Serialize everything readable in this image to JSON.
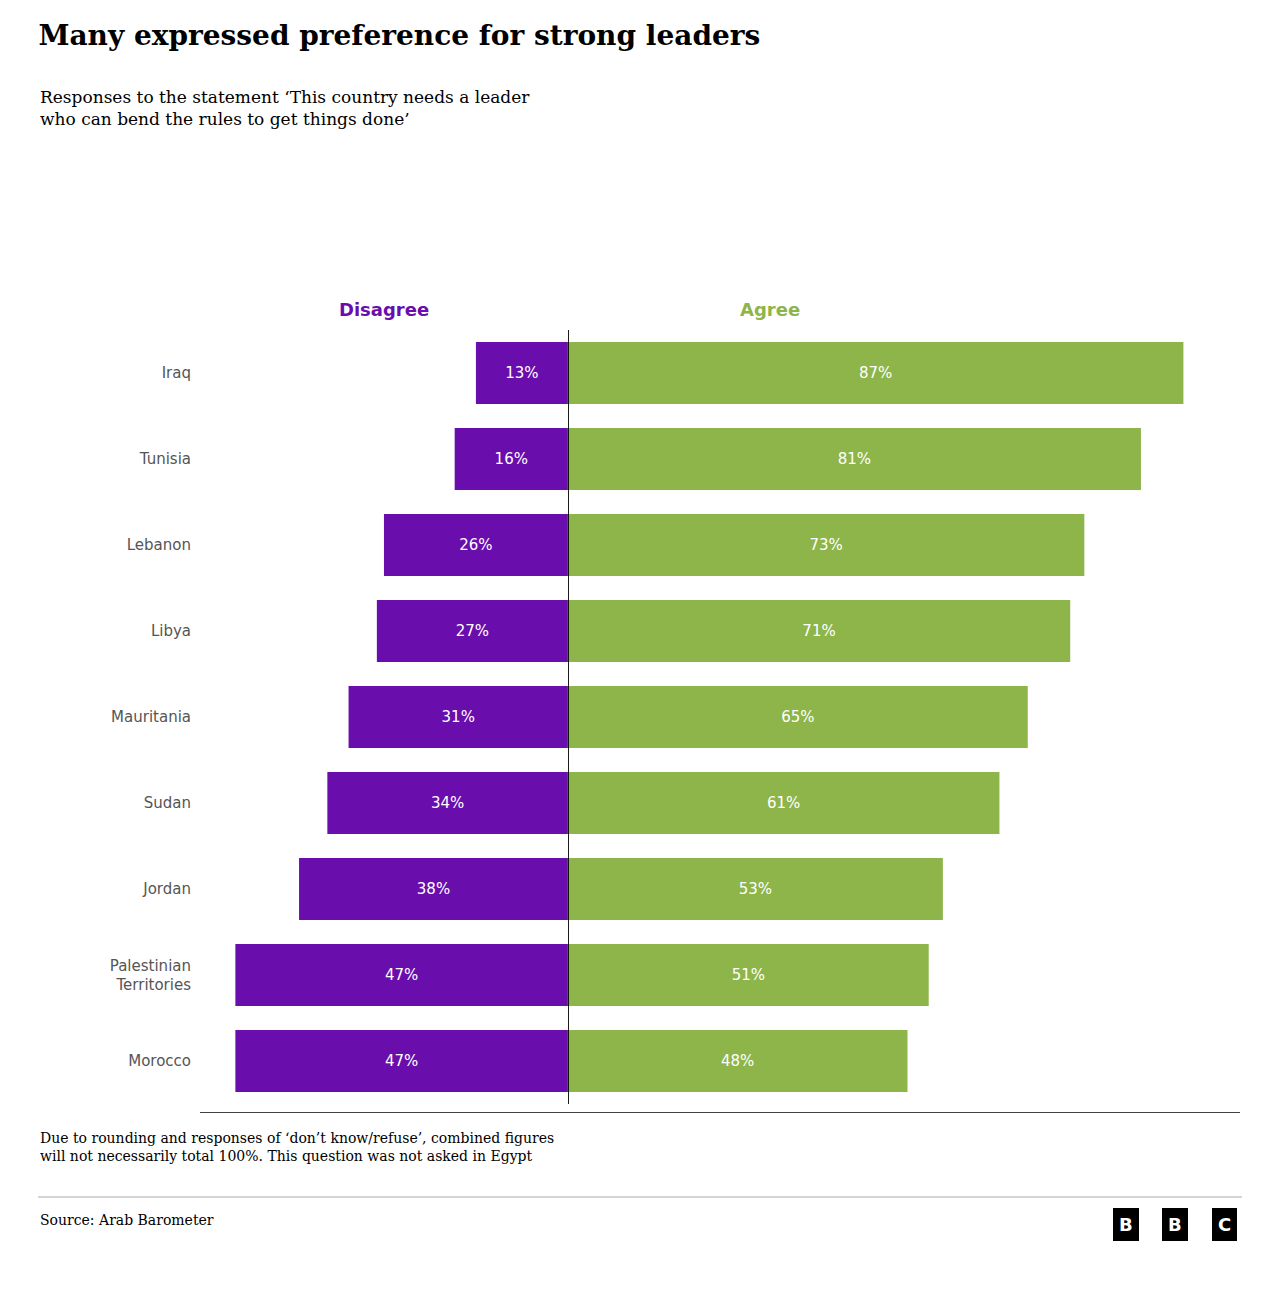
{
  "chart_data": {
    "type": "bar",
    "orientation": "horizontal",
    "title": "Many expressed preference for strong leaders",
    "subtitle": "Responses to the statement ‘This country needs a leader\nwho can bend the rules to get things done’",
    "categories": [
      "Iraq",
      "Tunisia",
      "Lebanon",
      "Libya",
      "Mauritania",
      "Sudan",
      "Jordan",
      "Palestinian\nTerritories",
      "Morocco"
    ],
    "series": [
      {
        "name": "Disagree",
        "color": "#6a0dad",
        "values": [
          13,
          16,
          26,
          27,
          31,
          34,
          38,
          47,
          47
        ],
        "value_labels": [
          "13%",
          "16%",
          "26%",
          "27%",
          "31%",
          "34%",
          "38%",
          "47%",
          "47%"
        ]
      },
      {
        "name": "Agree",
        "color": "#8db54a",
        "values": [
          87,
          81,
          73,
          71,
          65,
          61,
          53,
          51,
          48
        ],
        "value_labels": [
          "87%",
          "81%",
          "73%",
          "71%",
          "65%",
          "61%",
          "53%",
          "51%",
          "48%"
        ]
      }
    ],
    "xlim": [
      -52,
      95
    ],
    "data_labels": true,
    "tick_labels": "y",
    "grid": false,
    "footnote": "Due to rounding and responses of ‘don’t know/refuse’, combined figures\nwill not necessarily total 100%. This question was not asked in Egypt",
    "source": "Source: Arab Barometer",
    "logo": "BBC"
  }
}
